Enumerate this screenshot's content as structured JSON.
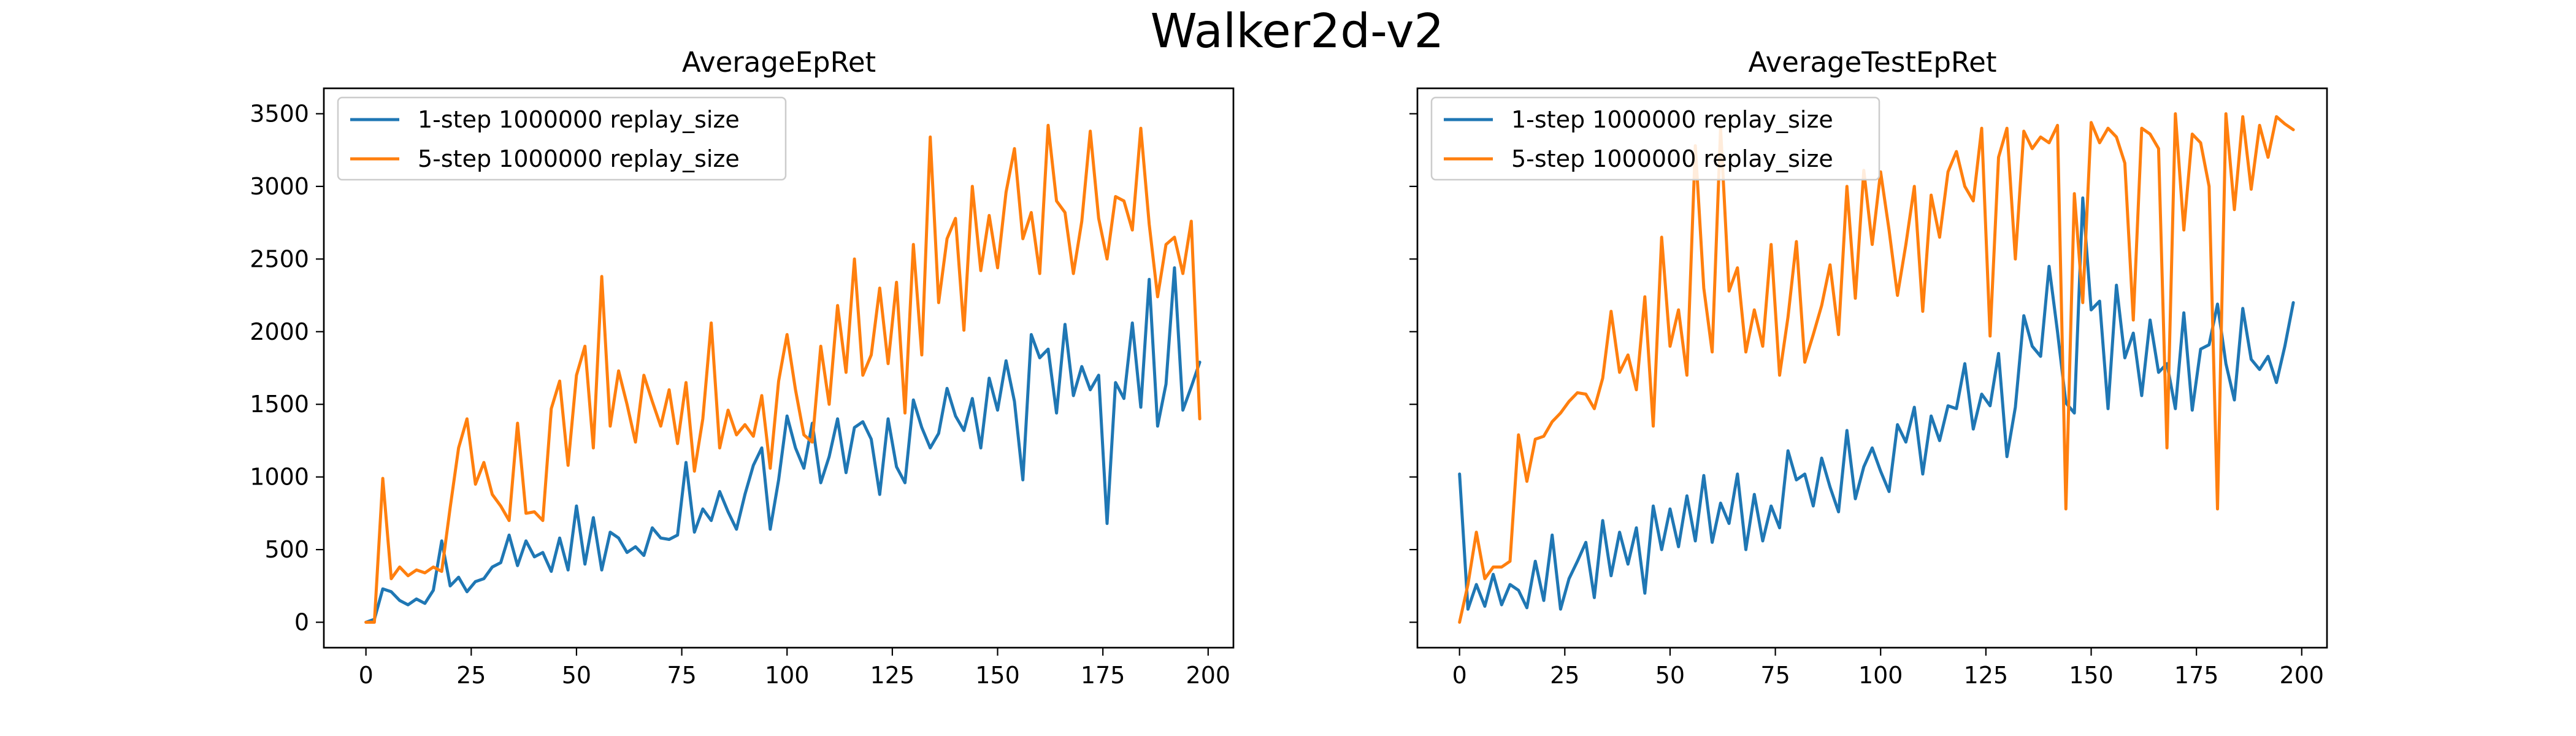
{
  "figure": {
    "title": "Walker2d-v2"
  },
  "colors": {
    "series_1": "#1f77b4",
    "series_2": "#ff7f0e"
  },
  "chart_data": [
    {
      "type": "line",
      "title": "AverageEpRet",
      "xlabel": "",
      "ylabel": "",
      "xlim": [
        -10,
        206
      ],
      "ylim": [
        -175,
        3675
      ],
      "xticks": [
        0,
        25,
        50,
        75,
        100,
        125,
        150,
        175,
        200
      ],
      "yticks": [
        0,
        500,
        1000,
        1500,
        2000,
        2500,
        3000,
        3500
      ],
      "ytick_labels_visible": true,
      "grid": false,
      "legend": {
        "placement": "top-left",
        "entries": [
          "1-step 1000000 replay_size",
          "5-step 1000000 replay_size"
        ]
      },
      "series": [
        {
          "name": "1-step 1000000 replay_size",
          "color": "#1f77b4",
          "x": [
            0,
            2,
            4,
            6,
            8,
            10,
            12,
            14,
            16,
            18,
            20,
            22,
            24,
            26,
            28,
            30,
            32,
            34,
            36,
            38,
            40,
            42,
            44,
            46,
            48,
            50,
            52,
            54,
            56,
            58,
            60,
            62,
            64,
            66,
            68,
            70,
            72,
            74,
            76,
            78,
            80,
            82,
            84,
            86,
            88,
            90,
            92,
            94,
            96,
            98,
            100,
            102,
            104,
            106,
            108,
            110,
            112,
            114,
            116,
            118,
            120,
            122,
            124,
            126,
            128,
            130,
            132,
            134,
            136,
            138,
            140,
            142,
            144,
            146,
            148,
            150,
            152,
            154,
            156,
            158,
            160,
            162,
            164,
            166,
            168,
            170,
            172,
            174,
            176,
            178,
            180,
            182,
            184,
            186,
            188,
            190,
            192,
            194,
            196,
            198
          ],
          "y": [
            0,
            20,
            230,
            210,
            150,
            120,
            160,
            130,
            220,
            560,
            250,
            310,
            210,
            280,
            300,
            380,
            410,
            600,
            390,
            560,
            450,
            480,
            350,
            580,
            360,
            800,
            400,
            720,
            360,
            620,
            580,
            480,
            520,
            460,
            650,
            580,
            570,
            600,
            1100,
            620,
            780,
            700,
            900,
            760,
            640,
            880,
            1080,
            1200,
            640,
            980,
            1420,
            1200,
            1060,
            1370,
            960,
            1140,
            1400,
            1030,
            1340,
            1380,
            1260,
            880,
            1400,
            1070,
            960,
            1530,
            1340,
            1200,
            1300,
            1610,
            1420,
            1320,
            1540,
            1200,
            1680,
            1460,
            1800,
            1520,
            980,
            1980,
            1820,
            1880,
            1440,
            2050,
            1560,
            1760,
            1600,
            1700,
            680,
            1650,
            1540,
            2060,
            1480,
            2360,
            1350,
            1640,
            2440,
            1460,
            1620,
            1790
          ],
          "y_detail_note": "estimated"
        },
        {
          "name": "5-step 1000000 replay_size",
          "color": "#ff7f0e",
          "x": [
            0,
            2,
            4,
            6,
            8,
            10,
            12,
            14,
            16,
            18,
            20,
            22,
            24,
            26,
            28,
            30,
            32,
            34,
            36,
            38,
            40,
            42,
            44,
            46,
            48,
            50,
            52,
            54,
            56,
            58,
            60,
            62,
            64,
            66,
            68,
            70,
            72,
            74,
            76,
            78,
            80,
            82,
            84,
            86,
            88,
            90,
            92,
            94,
            96,
            98,
            100,
            102,
            104,
            106,
            108,
            110,
            112,
            114,
            116,
            118,
            120,
            122,
            124,
            126,
            128,
            130,
            132,
            134,
            136,
            138,
            140,
            142,
            144,
            146,
            148,
            150,
            152,
            154,
            156,
            158,
            160,
            162,
            164,
            166,
            168,
            170,
            172,
            174,
            176,
            178,
            180,
            182,
            184,
            186,
            188,
            190,
            192,
            194,
            196,
            198
          ],
          "y": [
            0,
            0,
            990,
            300,
            380,
            320,
            360,
            340,
            380,
            350,
            790,
            1200,
            1400,
            950,
            1100,
            880,
            800,
            700,
            1370,
            750,
            760,
            700,
            1470,
            1660,
            1080,
            1700,
            1900,
            1200,
            2380,
            1350,
            1730,
            1500,
            1240,
            1700,
            1520,
            1350,
            1600,
            1230,
            1650,
            1040,
            1400,
            2060,
            1200,
            1460,
            1290,
            1360,
            1280,
            1560,
            1060,
            1660,
            1980,
            1600,
            1290,
            1240,
            1900,
            1500,
            2180,
            1720,
            2500,
            1700,
            1840,
            2300,
            1780,
            2340,
            1440,
            2600,
            1840,
            3340,
            2200,
            2640,
            2780,
            2010,
            3000,
            2420,
            2800,
            2440,
            2960,
            3260,
            2640,
            2820,
            2400,
            3420,
            2900,
            2820,
            2400,
            2760,
            3380,
            2780,
            2500,
            2930,
            2900,
            2700,
            3400,
            2740,
            2240,
            2600,
            2650,
            2400,
            2760,
            1400
          ],
          "y_detail_note": "estimated"
        }
      ]
    },
    {
      "type": "line",
      "title": "AverageTestEpRet",
      "xlabel": "",
      "ylabel": "",
      "xlim": [
        -10,
        206
      ],
      "ylim": [
        -175,
        3675
      ],
      "xticks": [
        0,
        25,
        50,
        75,
        100,
        125,
        150,
        175,
        200
      ],
      "yticks": [
        0,
        500,
        1000,
        1500,
        2000,
        2500,
        3000,
        3500
      ],
      "ytick_labels_visible": false,
      "grid": false,
      "legend": {
        "placement": "top-left",
        "entries": [
          "1-step 1000000 replay_size",
          "5-step 1000000 replay_size"
        ]
      },
      "series": [
        {
          "name": "1-step 1000000 replay_size",
          "color": "#1f77b4",
          "x": [
            0,
            2,
            4,
            6,
            8,
            10,
            12,
            14,
            16,
            18,
            20,
            22,
            24,
            26,
            28,
            30,
            32,
            34,
            36,
            38,
            40,
            42,
            44,
            46,
            48,
            50,
            52,
            54,
            56,
            58,
            60,
            62,
            64,
            66,
            68,
            70,
            72,
            74,
            76,
            78,
            80,
            82,
            84,
            86,
            88,
            90,
            92,
            94,
            96,
            98,
            100,
            102,
            104,
            106,
            108,
            110,
            112,
            114,
            116,
            118,
            120,
            122,
            124,
            126,
            128,
            130,
            132,
            134,
            136,
            138,
            140,
            142,
            144,
            146,
            148,
            150,
            152,
            154,
            156,
            158,
            160,
            162,
            164,
            166,
            168,
            170,
            172,
            174,
            176,
            178,
            180,
            182,
            184,
            186,
            188,
            190,
            192,
            194,
            196,
            198
          ],
          "y": [
            1020,
            90,
            260,
            110,
            330,
            120,
            260,
            220,
            100,
            420,
            150,
            600,
            90,
            300,
            420,
            550,
            170,
            700,
            320,
            620,
            400,
            650,
            200,
            800,
            500,
            780,
            520,
            870,
            560,
            1010,
            550,
            820,
            680,
            1020,
            500,
            880,
            560,
            800,
            650,
            1180,
            980,
            1020,
            800,
            1130,
            930,
            760,
            1320,
            850,
            1070,
            1200,
            1040,
            900,
            1360,
            1240,
            1480,
            1020,
            1420,
            1250,
            1490,
            1470,
            1780,
            1330,
            1570,
            1490,
            1850,
            1140,
            1480,
            2110,
            1900,
            1830,
            2450,
            2000,
            1510,
            1440,
            2920,
            2150,
            2210,
            1470,
            2320,
            1820,
            1990,
            1560,
            2080,
            1720,
            1780,
            1470,
            2130,
            1460,
            1880,
            1910,
            2190,
            1780,
            1530,
            2160,
            1810,
            1740,
            1830,
            1650,
            1900,
            2200
          ],
          "y_detail_note": "estimated"
        },
        {
          "name": "5-step 1000000 replay_size",
          "color": "#ff7f0e",
          "x": [
            0,
            2,
            4,
            6,
            8,
            10,
            12,
            14,
            16,
            18,
            20,
            22,
            24,
            26,
            28,
            30,
            32,
            34,
            36,
            38,
            40,
            42,
            44,
            46,
            48,
            50,
            52,
            54,
            56,
            58,
            60,
            62,
            64,
            66,
            68,
            70,
            72,
            74,
            76,
            78,
            80,
            82,
            84,
            86,
            88,
            90,
            92,
            94,
            96,
            98,
            100,
            102,
            104,
            106,
            108,
            110,
            112,
            114,
            116,
            118,
            120,
            122,
            124,
            126,
            128,
            130,
            132,
            134,
            136,
            138,
            140,
            142,
            144,
            146,
            148,
            150,
            152,
            154,
            156,
            158,
            160,
            162,
            164,
            166,
            168,
            170,
            172,
            174,
            176,
            178,
            180,
            182,
            184,
            186,
            188,
            190,
            192,
            194,
            196,
            198
          ],
          "y": [
            0,
            260,
            620,
            300,
            380,
            380,
            420,
            1290,
            970,
            1260,
            1280,
            1380,
            1440,
            1520,
            1580,
            1570,
            1470,
            1680,
            2140,
            1720,
            1840,
            1600,
            2240,
            1350,
            2650,
            1900,
            2150,
            1700,
            3280,
            2300,
            1860,
            3400,
            2280,
            2440,
            1860,
            2150,
            1900,
            2600,
            1700,
            2100,
            2620,
            1790,
            1980,
            2180,
            2460,
            1980,
            3000,
            2230,
            3110,
            2600,
            3100,
            2700,
            2250,
            2600,
            3000,
            2140,
            2940,
            2650,
            3100,
            3240,
            3000,
            2900,
            3400,
            1970,
            3200,
            3400,
            2500,
            3380,
            3260,
            3340,
            3300,
            3420,
            780,
            2950,
            2200,
            3440,
            3300,
            3400,
            3340,
            3160,
            2080,
            3400,
            3360,
            3260,
            1200,
            3500,
            2700,
            3360,
            3300,
            3000,
            780,
            3500,
            2840,
            3480,
            2980,
            3420,
            3200,
            3480,
            3430,
            3390
          ],
          "y_detail_note": "estimated"
        }
      ]
    }
  ]
}
